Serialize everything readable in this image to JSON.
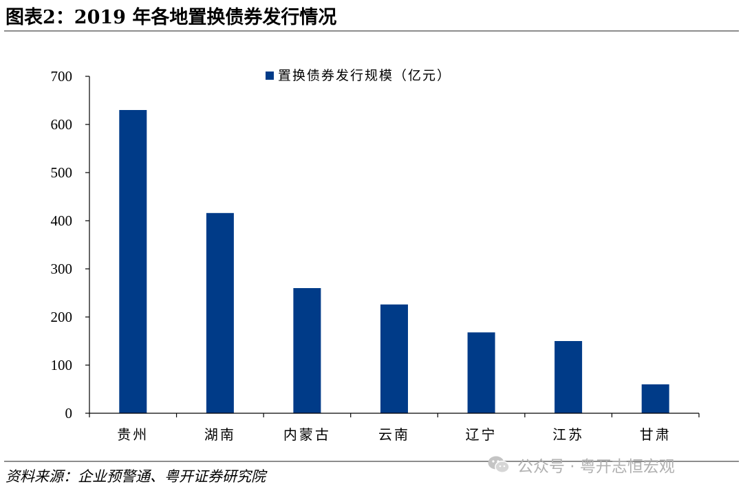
{
  "header": {
    "title": "图表2：2019 年各地置换债券发行情况"
  },
  "footer": {
    "source": "资料来源：企业预警通、粤开证券研究院",
    "watermark": "公众号 · 粤开志恒宏观"
  },
  "colors": {
    "bar": "#003b88",
    "axis": "#000000",
    "rule": "#8c8c8c",
    "watermark": "#b0b0b0"
  },
  "icons": {
    "watermark": "wechat-icon"
  },
  "chart_data": {
    "type": "bar",
    "title": "",
    "xlabel": "",
    "ylabel": "",
    "categories": [
      "贵州",
      "湖南",
      "内蒙古",
      "云南",
      "辽宁",
      "江苏",
      "甘肃"
    ],
    "series": [
      {
        "name": "置换债券发行规模（亿元）",
        "values": [
          630,
          416,
          260,
          226,
          168,
          150,
          60
        ]
      }
    ],
    "ylim": [
      0,
      700
    ],
    "yticks": [
      0,
      100,
      200,
      300,
      400,
      500,
      600,
      700
    ],
    "grid": false,
    "legend_position": "top-center"
  }
}
